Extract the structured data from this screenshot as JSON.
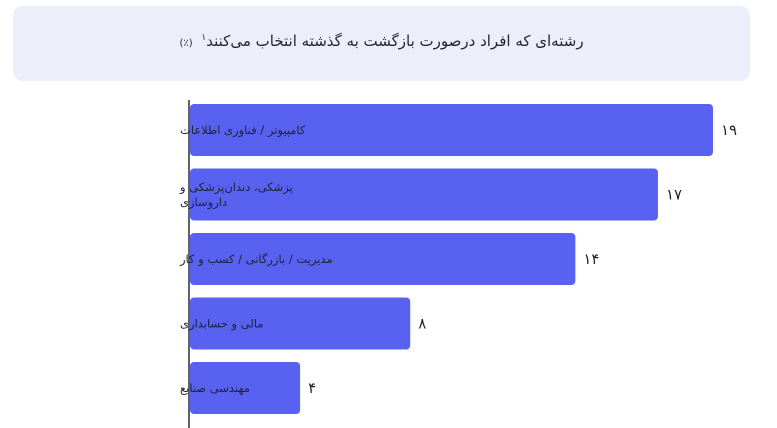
{
  "title": {
    "text": "رشته‌ای که افراد درصورت بازگشت به گذشته انتخاب می‌کنند",
    "footnote": "۱",
    "unit": "(٪)"
  },
  "chart_data": {
    "type": "bar",
    "orientation": "horizontal",
    "title": "رشته‌ای که افراد درصورت بازگشت به گذشته انتخاب می‌کنند (٪)",
    "categories": [
      [
        "کامپیوتر / فناوری اطلاعات"
      ],
      [
        "پزشکی، دندان‌پزشکی و",
        "داروسازی"
      ],
      [
        "مدیریت / بازرگانی / کسب و کار"
      ],
      [
        "مالی و حسابداری"
      ],
      [
        "مهندسی صنایع"
      ]
    ],
    "values": [
      19,
      17,
      14,
      8,
      4
    ],
    "value_labels": [
      "۱۹",
      "۱۷",
      "۱۴",
      "۸",
      "۴"
    ],
    "xlim": [
      0,
      19
    ],
    "bar_color": "#5861f0",
    "grid": false
  }
}
